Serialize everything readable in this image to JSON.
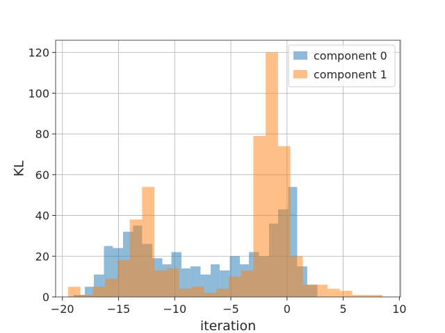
{
  "chart_data": {
    "type": "histogram",
    "title": "",
    "xlabel": "iteration",
    "ylabel": "KL",
    "xlim": [
      -20.6,
      10.1
    ],
    "ylim": [
      0,
      126
    ],
    "xticks": [
      -20,
      -15,
      -10,
      -5,
      0,
      5,
      10
    ],
    "yticks": [
      0,
      20,
      40,
      60,
      80,
      100,
      120
    ],
    "grid": true,
    "legend_position": "top-right",
    "series": [
      {
        "name": "component 0",
        "color": "#1f77b4",
        "opacity": 0.5,
        "bins": [
          {
            "x0": -19.0,
            "x1": -18.0,
            "count": 1
          },
          {
            "x0": -18.0,
            "x1": -17.2,
            "count": 5
          },
          {
            "x0": -17.2,
            "x1": -16.3,
            "count": 11
          },
          {
            "x0": -16.3,
            "x1": -15.5,
            "count": 25
          },
          {
            "x0": -15.5,
            "x1": -14.6,
            "count": 24
          },
          {
            "x0": -14.6,
            "x1": -13.7,
            "count": 32
          },
          {
            "x0": -13.7,
            "x1": -12.9,
            "count": 35
          },
          {
            "x0": -12.9,
            "x1": -12.0,
            "count": 26
          },
          {
            "x0": -12.0,
            "x1": -11.1,
            "count": 19
          },
          {
            "x0": -11.1,
            "x1": -10.3,
            "count": 16
          },
          {
            "x0": -10.3,
            "x1": -9.4,
            "count": 22
          },
          {
            "x0": -9.4,
            "x1": -8.6,
            "count": 14
          },
          {
            "x0": -8.6,
            "x1": -7.7,
            "count": 15
          },
          {
            "x0": -7.7,
            "x1": -6.8,
            "count": 11
          },
          {
            "x0": -6.8,
            "x1": -6.0,
            "count": 16
          },
          {
            "x0": -6.0,
            "x1": -5.1,
            "count": 13
          },
          {
            "x0": -5.1,
            "x1": -4.2,
            "count": 20
          },
          {
            "x0": -4.2,
            "x1": -3.4,
            "count": 16
          },
          {
            "x0": -3.4,
            "x1": -2.5,
            "count": 22
          },
          {
            "x0": -2.5,
            "x1": -1.6,
            "count": 20
          },
          {
            "x0": -1.6,
            "x1": -0.8,
            "count": 36
          },
          {
            "x0": -0.8,
            "x1": 0.1,
            "count": 43
          },
          {
            "x0": 0.1,
            "x1": 0.9,
            "count": 54
          },
          {
            "x0": 0.9,
            "x1": 1.8,
            "count": 15
          },
          {
            "x0": 1.8,
            "x1": 2.7,
            "count": 6
          }
        ]
      },
      {
        "name": "component 1",
        "color": "#ff7f0e",
        "opacity": 0.5,
        "bins": [
          {
            "x0": -19.5,
            "x1": -18.4,
            "count": 5
          },
          {
            "x0": -18.4,
            "x1": -17.3,
            "count": 1
          },
          {
            "x0": -17.3,
            "x1": -16.2,
            "count": 5
          },
          {
            "x0": -16.2,
            "x1": -15.1,
            "count": 9
          },
          {
            "x0": -15.1,
            "x1": -14.0,
            "count": 18
          },
          {
            "x0": -14.0,
            "x1": -12.9,
            "count": 38
          },
          {
            "x0": -12.9,
            "x1": -11.8,
            "count": 54
          },
          {
            "x0": -11.8,
            "x1": -10.7,
            "count": 13
          },
          {
            "x0": -10.7,
            "x1": -9.6,
            "count": 14
          },
          {
            "x0": -9.6,
            "x1": -8.5,
            "count": 4
          },
          {
            "x0": -8.5,
            "x1": -7.4,
            "count": 5
          },
          {
            "x0": -7.4,
            "x1": -6.3,
            "count": 2
          },
          {
            "x0": -6.3,
            "x1": -5.2,
            "count": 4
          },
          {
            "x0": -5.2,
            "x1": -4.1,
            "count": 10
          },
          {
            "x0": -4.1,
            "x1": -3.0,
            "count": 13
          },
          {
            "x0": -3.0,
            "x1": -1.9,
            "count": 79
          },
          {
            "x0": -1.9,
            "x1": -0.8,
            "count": 120
          },
          {
            "x0": -0.8,
            "x1": 0.3,
            "count": 74
          },
          {
            "x0": 0.3,
            "x1": 1.4,
            "count": 20
          },
          {
            "x0": 1.4,
            "x1": 2.5,
            "count": 6
          },
          {
            "x0": 2.5,
            "x1": 3.6,
            "count": 6
          },
          {
            "x0": 3.6,
            "x1": 4.7,
            "count": 4
          },
          {
            "x0": 4.7,
            "x1": 5.8,
            "count": 3
          },
          {
            "x0": 5.8,
            "x1": 6.9,
            "count": 1
          },
          {
            "x0": 6.9,
            "x1": 8.5,
            "count": 1
          }
        ]
      }
    ]
  }
}
